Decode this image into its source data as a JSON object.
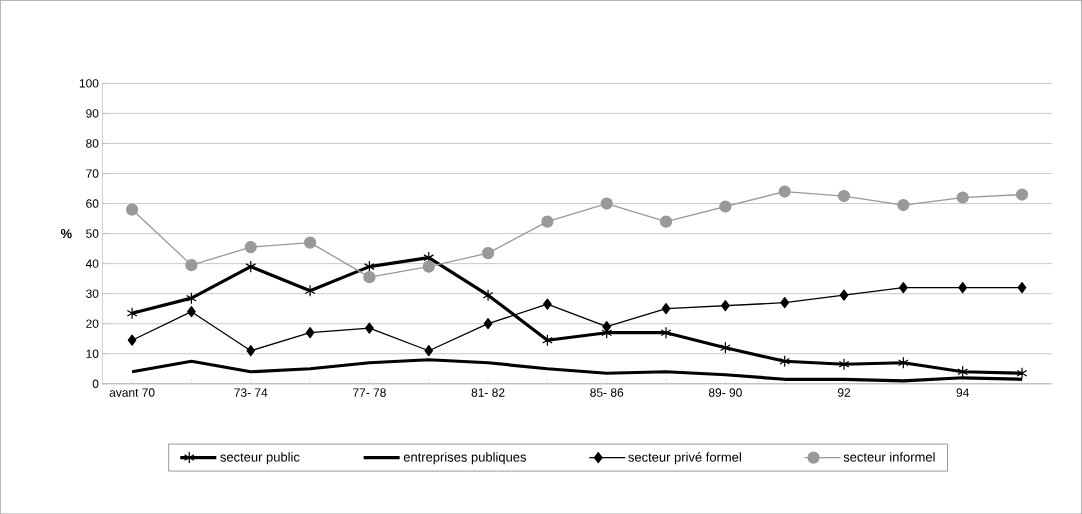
{
  "chart_data": {
    "type": "line",
    "ylabel": "%",
    "categories": [
      "avant 70",
      null,
      "73- 74",
      null,
      "77- 78",
      null,
      "81- 82",
      null,
      "85- 86",
      null,
      "89- 90",
      null,
      "92",
      null,
      "94",
      null
    ],
    "ylim": [
      0,
      100
    ],
    "yticks": [
      0,
      10,
      20,
      30,
      40,
      50,
      60,
      70,
      80,
      90,
      100
    ],
    "grid": "y",
    "legend": "bottom",
    "series": [
      {
        "name": "secteur public",
        "color": "#000000",
        "marker": "cross",
        "values": [
          23.5,
          28.5,
          39,
          31,
          39,
          42,
          29.5,
          14.5,
          17,
          17,
          12,
          7.5,
          6.5,
          7,
          4,
          3.5
        ]
      },
      {
        "name": "entreprises publiques",
        "color": "#000000",
        "marker": "none",
        "values": [
          4,
          7.5,
          4,
          5,
          7,
          8,
          7,
          5,
          3.5,
          4,
          3,
          1.5,
          1.5,
          1,
          2,
          1.5
        ]
      },
      {
        "name": "secteur privé formel",
        "color": "#000000",
        "marker": "diamond",
        "values": [
          14.5,
          24,
          11,
          17,
          18.5,
          11,
          20,
          26.5,
          19,
          25,
          26,
          27,
          29.5,
          32,
          32,
          32
        ]
      },
      {
        "name": "secteur informel",
        "color": "#999999",
        "marker": "circle",
        "values": [
          58,
          39.5,
          45.5,
          47,
          35.5,
          39,
          43.5,
          54,
          60,
          54,
          59,
          64,
          62.5,
          59.5,
          62,
          63
        ]
      }
    ]
  }
}
